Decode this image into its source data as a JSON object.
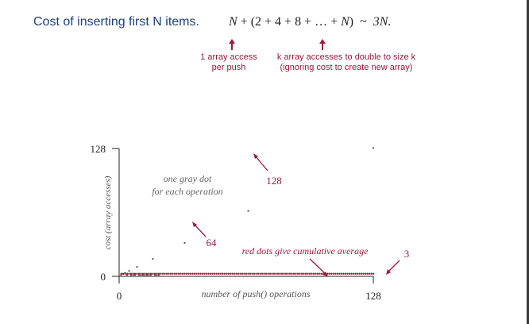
{
  "header": {
    "title": "Cost of inserting first N items.",
    "formula": {
      "lhs_N": "N",
      "plus": "+",
      "paren_open": "(2 + 4 + 8 + … + ",
      "paren_N": "N",
      "paren_close": ")",
      "tilde": "~",
      "rhs": "3N."
    }
  },
  "notes": {
    "left_line1": "1 array access",
    "left_line2": "per push",
    "right_line1": "k array accesses to double to size k",
    "right_line2": "(ignoring cost to create new array)"
  },
  "colors": {
    "title": "#1f3f7a",
    "annotation": "#9b1b3a",
    "gray_dot": "#555555",
    "red_dot": "#9b1b3a",
    "axis": "#222222"
  },
  "chart_data": {
    "type": "scatter",
    "xlabel": "number of push() operations",
    "ylabel": "cost (array accesses)",
    "xlim": [
      0,
      128
    ],
    "ylim": [
      0,
      128
    ],
    "x_ticks": [
      "0",
      "128"
    ],
    "y_ticks": [
      "0",
      "128"
    ],
    "series": [
      {
        "name": "",
        "description": "cost per operation",
        "points": [
          [
            1,
            1
          ],
          [
            2,
            2
          ],
          [
            3,
            3
          ],
          [
            4,
            1
          ],
          [
            5,
            5
          ],
          [
            6,
            1
          ],
          [
            7,
            1
          ],
          [
            8,
            1
          ],
          [
            9,
            9
          ],
          [
            10,
            1
          ],
          [
            11,
            1
          ],
          [
            12,
            1
          ],
          [
            13,
            1
          ],
          [
            14,
            1
          ],
          [
            15,
            1
          ],
          [
            16,
            1
          ],
          [
            17,
            17
          ],
          [
            18,
            1
          ],
          [
            19,
            1
          ],
          [
            20,
            1
          ],
          [
            33,
            33
          ],
          [
            65,
            65
          ],
          [
            128,
            128
          ]
        ]
      },
      {
        "name": "",
        "description": "cumulative average",
        "x_start": 1,
        "x_end": 128,
        "value_approx": 3
      }
    ],
    "annotations": {
      "gray_note_line1": "one gray dot",
      "gray_note_line2": "for each operation",
      "label_128": "128",
      "label_64": "64",
      "red_note": "red dots give cumulative average",
      "label_3": "3"
    }
  }
}
